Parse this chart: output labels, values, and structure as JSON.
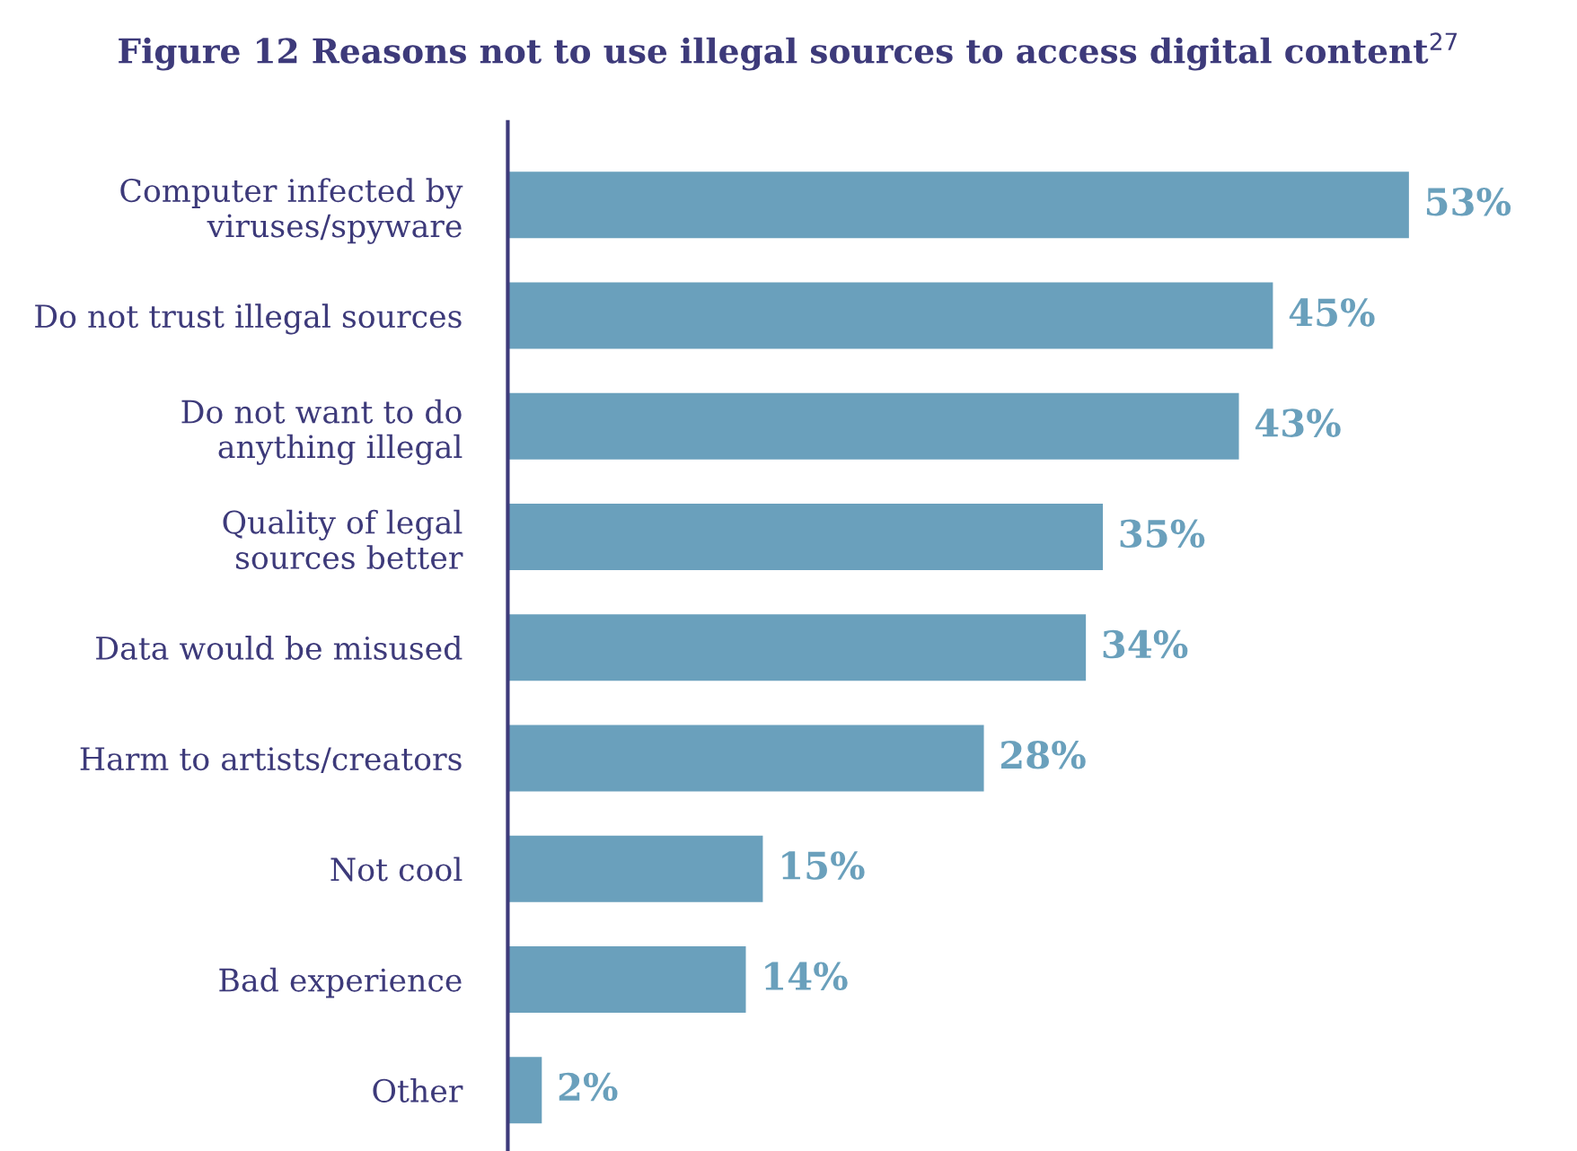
{
  "chart_data": {
    "type": "bar",
    "orientation": "horizontal",
    "title": "Figure 12 Reasons not to use illegal sources to access digital content$^{27}$",
    "categories": [
      "Computer infected by\nviruses/spyware",
      "Do not trust illegal sources",
      "Do not want to do\nanything illegal",
      "Quality of legal\nsources better",
      "Data would be misused",
      "Harm to artists/creators",
      "Not cool",
      "Bad experience",
      "Other"
    ],
    "values": [
      53,
      45,
      43,
      35,
      34,
      28,
      15,
      14,
      2
    ],
    "value_labels": [
      "53%",
      "45%",
      "43%",
      "35%",
      "34%",
      "28%",
      "15%",
      "14%",
      "2%"
    ],
    "color": "#6aa0bc",
    "grid": false,
    "legend": false
  }
}
